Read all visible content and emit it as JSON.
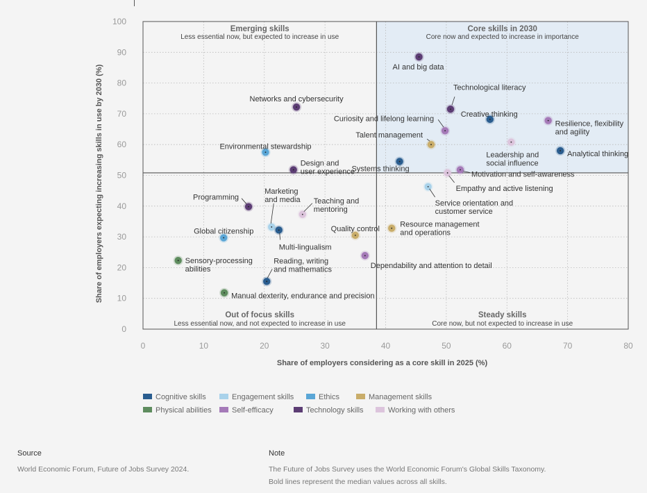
{
  "chart_data": {
    "type": "scatter",
    "xlabel": "Share of employers considering as a core skill in 2025 (%)",
    "ylabel": "Share of employers expecting increasing skills in use by 2030 (%)",
    "xlim": [
      0,
      80
    ],
    "ylim": [
      0,
      100
    ],
    "x_ticks": [
      "0",
      "10",
      "20",
      "30",
      "40",
      "50",
      "60",
      "70",
      "80"
    ],
    "y_ticks": [
      "0",
      "10",
      "20",
      "30",
      "40",
      "50",
      "60",
      "70",
      "80",
      "90",
      "100"
    ],
    "grid": true,
    "median_lines": {
      "x": 38.5,
      "y": 50.8
    },
    "quadrants": {
      "top_left": {
        "title": "Emerging skills",
        "subtitle": "Less essential now, but expected to increase in use"
      },
      "top_right": {
        "title": "Core skills in 2030",
        "subtitle": "Core now and expected to increase in importance"
      },
      "bottom_left": {
        "title": "Out of focus skills",
        "subtitle": "Less essential now, and not expected to increase in use"
      },
      "bottom_right": {
        "title": "Steady skills",
        "subtitle": "Core now, but not expected to increase in use"
      }
    },
    "categories": [
      {
        "name": "Cognitive skills",
        "color": "#2a5d8f"
      },
      {
        "name": "Engagement skills",
        "color": "#a9d2ea"
      },
      {
        "name": "Ethics",
        "color": "#5aa6d6"
      },
      {
        "name": "Management skills",
        "color": "#c9ad6a"
      },
      {
        "name": "Physical abilities",
        "color": "#5e8c5e"
      },
      {
        "name": "Self-efficacy",
        "color": "#a57ab8"
      },
      {
        "name": "Technology skills",
        "color": "#5c3d74"
      },
      {
        "name": "Working with others",
        "color": "#dcc4dc"
      }
    ],
    "points": [
      {
        "label": [
          "AI and big data"
        ],
        "x": 45.5,
        "y": 88.5,
        "cat": "Technology skills"
      },
      {
        "label": [
          "Technological literacy"
        ],
        "x": 50.7,
        "y": 71.5,
        "cat": "Technology skills"
      },
      {
        "label": [
          "Creative thinking"
        ],
        "x": 57.2,
        "y": 68.2,
        "cat": "Cognitive skills"
      },
      {
        "label": [
          "Resilience, flexibility",
          "and agility"
        ],
        "x": 66.8,
        "y": 67.8,
        "cat": "Self-efficacy"
      },
      {
        "label": [
          "Curiosity and lifelong learning"
        ],
        "x": 49.8,
        "y": 64.5,
        "cat": "Self-efficacy"
      },
      {
        "label": [
          "Talent management"
        ],
        "x": 47.5,
        "y": 60.0,
        "cat": "Management skills"
      },
      {
        "label": [
          "Leadership and",
          "social influence"
        ],
        "x": 60.7,
        "y": 60.8,
        "cat": "Working with others"
      },
      {
        "label": [
          "Analytical thinking"
        ],
        "x": 68.8,
        "y": 58.0,
        "cat": "Cognitive skills"
      },
      {
        "label": [
          "Systems thinking"
        ],
        "x": 42.3,
        "y": 54.5,
        "cat": "Cognitive skills"
      },
      {
        "label": [
          "Motivation and self-awareness"
        ],
        "x": 52.3,
        "y": 51.8,
        "cat": "Self-efficacy"
      },
      {
        "label": [
          "Empathy and active listening"
        ],
        "x": 50.2,
        "y": 50.8,
        "cat": "Working with others"
      },
      {
        "label": [
          "Service orientation and",
          "customer service"
        ],
        "x": 47.0,
        "y": 46.3,
        "cat": "Engagement skills"
      },
      {
        "label": [
          "Networks and cybersecurity"
        ],
        "x": 25.3,
        "y": 72.2,
        "cat": "Technology skills"
      },
      {
        "label": [
          "Environmental stewardship"
        ],
        "x": 20.2,
        "y": 57.5,
        "cat": "Ethics"
      },
      {
        "label": [
          "Design and",
          "user experience"
        ],
        "x": 24.8,
        "y": 51.8,
        "cat": "Technology skills"
      },
      {
        "label": [
          "Programming"
        ],
        "x": 17.4,
        "y": 39.8,
        "cat": "Technology skills"
      },
      {
        "label": [
          "Marketing",
          "and media"
        ],
        "x": 21.2,
        "y": 33.2,
        "cat": "Engagement skills"
      },
      {
        "label": [
          "Teaching and",
          "mentoring"
        ],
        "x": 26.3,
        "y": 37.3,
        "cat": "Working with others"
      },
      {
        "label": [
          "Global citizenship"
        ],
        "x": 13.3,
        "y": 29.7,
        "cat": "Ethics"
      },
      {
        "label": [
          "Multi-lingualism"
        ],
        "x": 22.4,
        "y": 32.2,
        "cat": "Cognitive skills"
      },
      {
        "label": [
          "Quality control"
        ],
        "x": 35.0,
        "y": 30.5,
        "cat": "Management skills"
      },
      {
        "label": [
          "Resource management",
          "and operations"
        ],
        "x": 41.0,
        "y": 32.8,
        "cat": "Management skills"
      },
      {
        "label": [
          "Sensory-processing",
          "abilities"
        ],
        "x": 5.8,
        "y": 22.3,
        "cat": "Physical abilities"
      },
      {
        "label": [
          "Reading, writing",
          "and mathematics"
        ],
        "x": 20.4,
        "y": 15.5,
        "cat": "Cognitive skills"
      },
      {
        "label": [
          "Dependability and attention to detail"
        ],
        "x": 36.6,
        "y": 23.9,
        "cat": "Self-efficacy"
      },
      {
        "label": [
          "Manual dexterity, endurance and precision"
        ],
        "x": 13.4,
        "y": 11.8,
        "cat": "Physical abilities"
      }
    ]
  },
  "footer": {
    "source_heading": "Source",
    "source_text": "World Economic Forum, Future of Jobs Survey 2024.",
    "note_heading": "Note",
    "note_line1": "The Future of Jobs Survey uses the World Economic Forum's Global Skills Taxonomy.",
    "note_line2": "Bold lines represent the median values across all skills."
  }
}
